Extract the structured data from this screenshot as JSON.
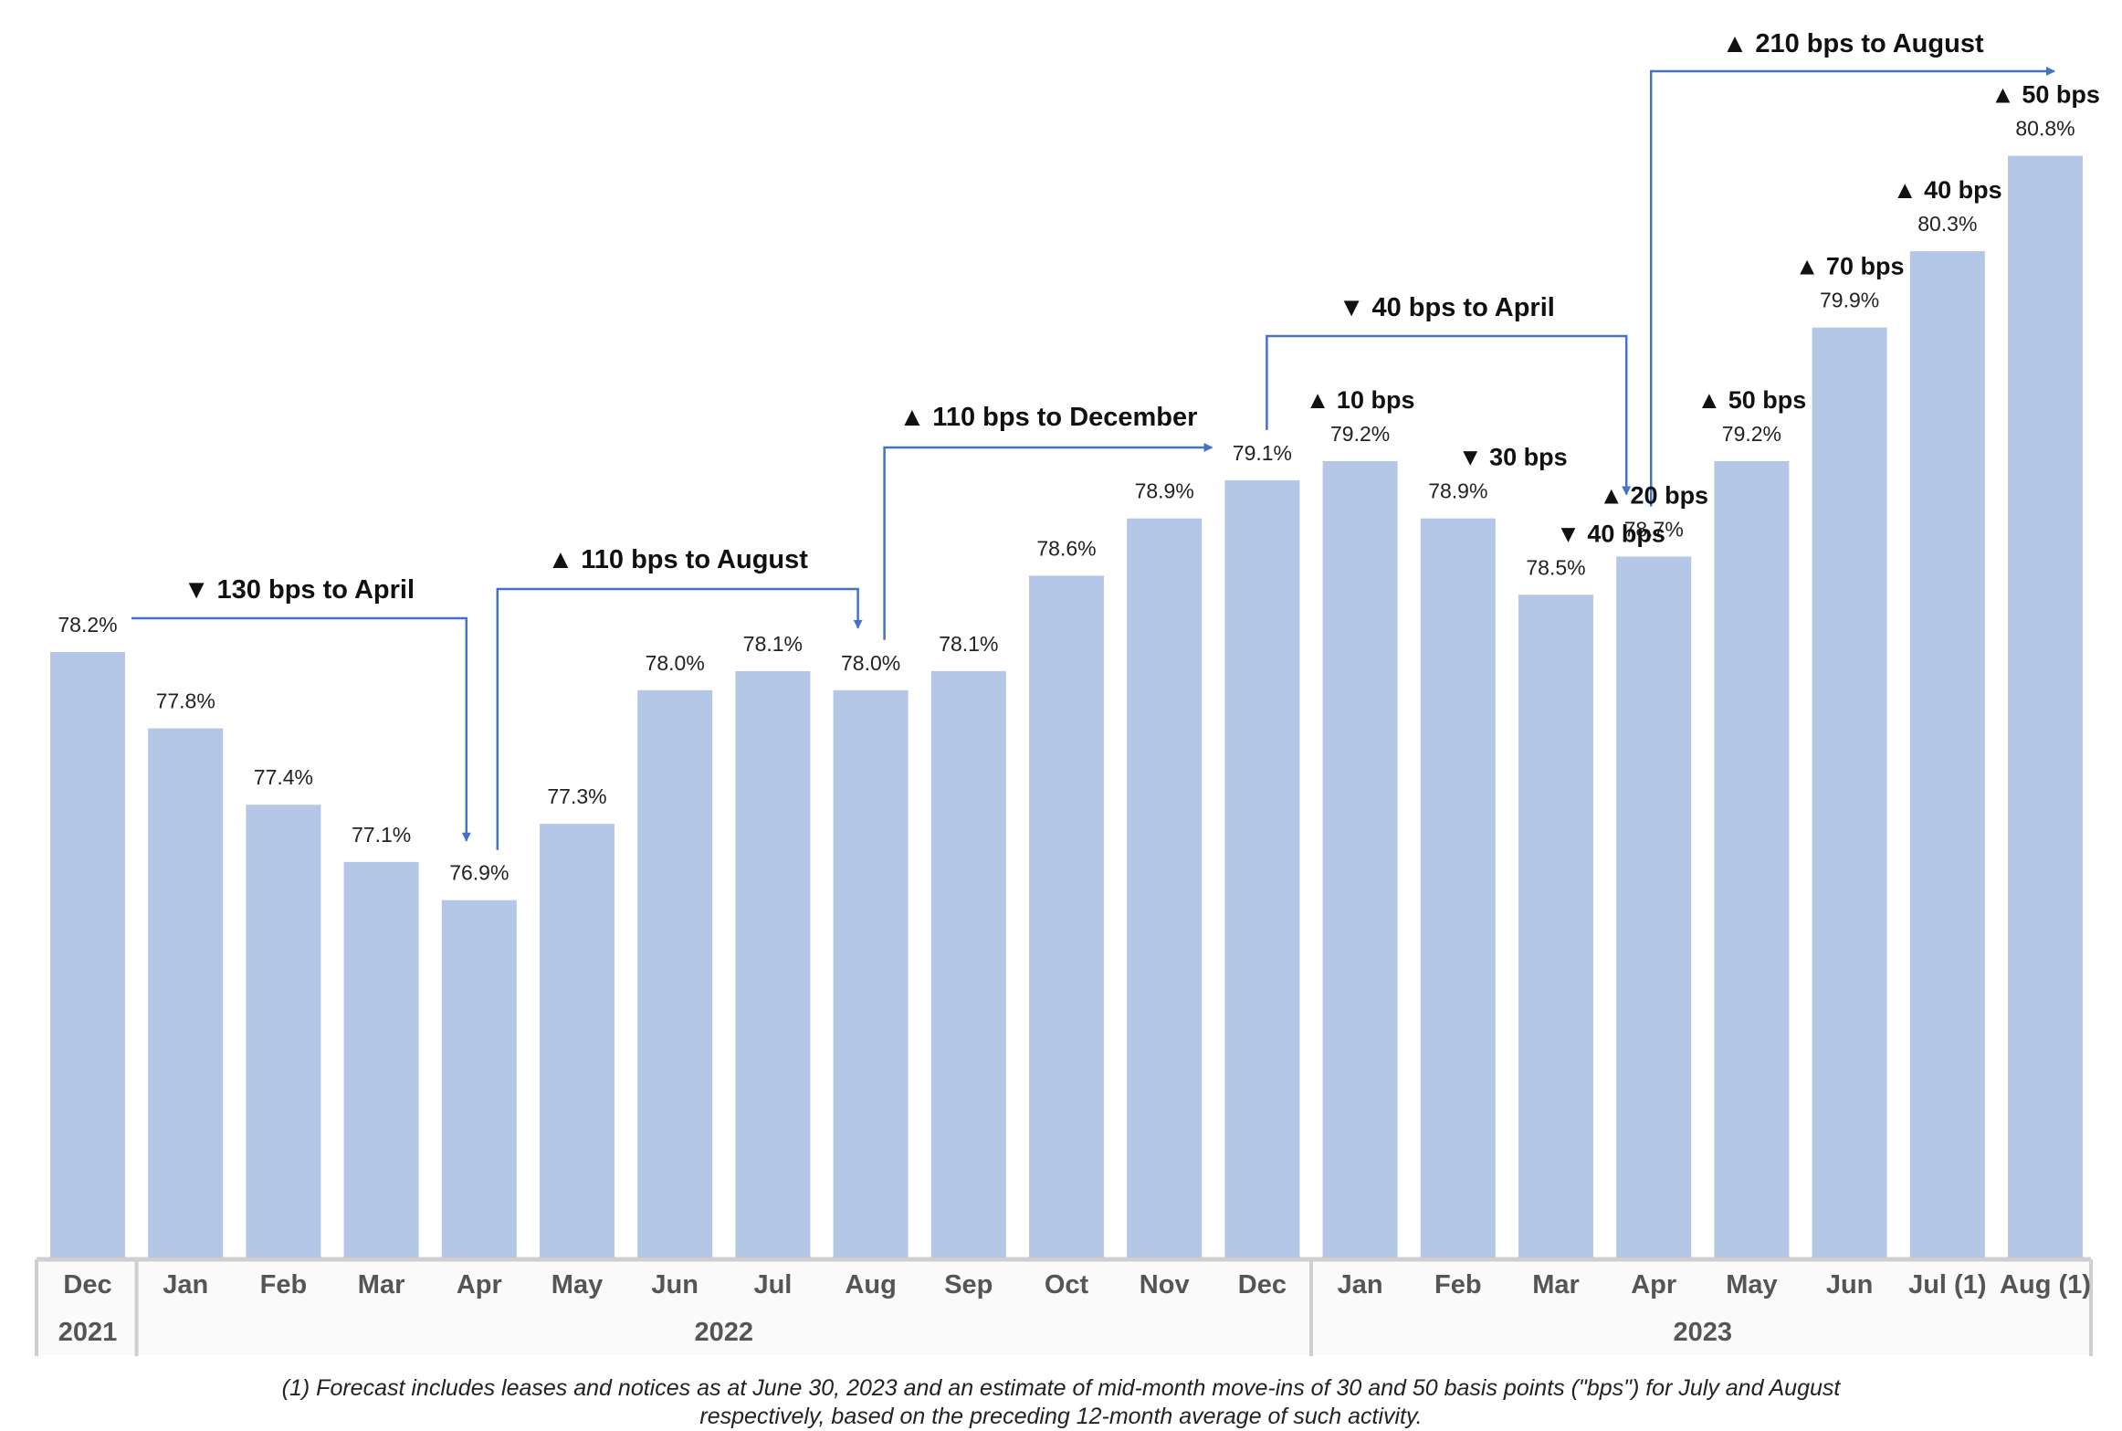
{
  "chart_data": {
    "type": "bar",
    "categories": [
      "Dec",
      "Jan",
      "Feb",
      "Mar",
      "Apr",
      "May",
      "Jun",
      "Jul",
      "Aug",
      "Sep",
      "Oct",
      "Nov",
      "Dec",
      "Jan",
      "Feb",
      "Mar",
      "Apr",
      "May",
      "Jun",
      "Jul (1)",
      "Aug (1)"
    ],
    "values": [
      78.2,
      77.8,
      77.4,
      77.1,
      76.9,
      77.3,
      78.0,
      78.1,
      78.0,
      78.1,
      78.6,
      78.9,
      79.1,
      79.2,
      78.9,
      78.5,
      78.7,
      79.2,
      79.9,
      80.3,
      80.8
    ],
    "value_labels": [
      "78.2%",
      "77.8%",
      "77.4%",
      "77.1%",
      "76.9%",
      "77.3%",
      "78.0%",
      "78.1%",
      "78.0%",
      "78.1%",
      "78.6%",
      "78.9%",
      "79.1%",
      "79.2%",
      "78.9%",
      "78.5%",
      "78.7%",
      "79.2%",
      "79.9%",
      "80.3%",
      "80.8%"
    ],
    "ylim": [
      72.0,
      81.0
    ],
    "bar_color": "#b4c7e7",
    "arrow_color": "#4472c4",
    "year_groups": [
      {
        "label": "2021",
        "start": 0,
        "end": 0
      },
      {
        "label": "2022",
        "start": 1,
        "end": 12
      },
      {
        "label": "2023",
        "start": 13,
        "end": 20
      }
    ],
    "monthly_changes": [
      {
        "index": 13,
        "direction": "up",
        "text": "10 bps"
      },
      {
        "index": 14,
        "direction": "down",
        "text": "30 bps"
      },
      {
        "index": 15,
        "direction": "down",
        "text": "40 bps"
      },
      {
        "index": 16,
        "direction": "up",
        "text": "20 bps"
      },
      {
        "index": 17,
        "direction": "up",
        "text": "50 bps"
      },
      {
        "index": 18,
        "direction": "up",
        "text": "70 bps"
      },
      {
        "index": 19,
        "direction": "up",
        "text": "40 bps"
      },
      {
        "index": 20,
        "direction": "up",
        "text": "50 bps"
      }
    ],
    "period_annotations": [
      {
        "from": 0,
        "to": 4,
        "direction": "down",
        "text": "130 bps to April"
      },
      {
        "from": 4,
        "to": 8,
        "direction": "up",
        "text": "110 bps to August"
      },
      {
        "from": 8,
        "to": 12,
        "direction": "up",
        "text": "110 bps to December"
      },
      {
        "from": 12,
        "to": 16,
        "direction": "down",
        "text": "40 bps to April"
      },
      {
        "from": 16,
        "to": 20,
        "direction": "up",
        "text": "210 bps to August"
      }
    ],
    "footnote": [
      "(1) Forecast includes leases and notices as at June 30, 2023 and an estimate of mid-month move-ins of 30 and 50 basis points (\"bps\") for July and August",
      "respectively, based on the preceding 12-month average of such activity."
    ]
  }
}
